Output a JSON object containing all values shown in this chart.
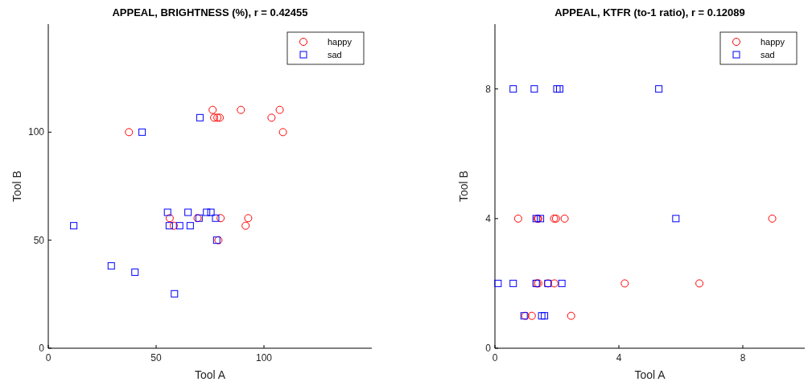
{
  "chart_data": [
    {
      "type": "scatter",
      "title": "APPEAL, BRIGHTNESS (%), r = 0.42455",
      "xlabel": "Tool A",
      "ylabel": "Tool B",
      "xlim": [
        0,
        150
      ],
      "ylim": [
        0,
        150
      ],
      "xticks": [
        0,
        50,
        100
      ],
      "yticks": [
        0,
        50,
        100
      ],
      "grid": false,
      "legend": "top right",
      "series": [
        {
          "name": "happy",
          "color": "#ff0000",
          "marker": "circle",
          "x": [
            37.4,
            76.2,
            76.9,
            78.4,
            79.5,
            89.3,
            103.5,
            107.3,
            108.8,
            56.3,
            58.2,
            69.2,
            79.9,
            92.7,
            91.5,
            78.9
          ],
          "values": [
            100,
            110.3,
            106.7,
            106.7,
            106.7,
            110.3,
            106.7,
            110.3,
            100,
            60.2,
            56.7,
            60.2,
            60.2,
            60.2,
            56.7,
            50
          ]
        },
        {
          "name": "sad",
          "color": "#0000ff",
          "marker": "square",
          "x": [
            70.3,
            43.5,
            11.8,
            29.2,
            40.2,
            58.5,
            55.3,
            56.1,
            60.9,
            64.8,
            65.8,
            69.9,
            73.4,
            75.4,
            77.6,
            78.1
          ],
          "values": [
            106.7,
            100,
            56.7,
            38.1,
            35.2,
            25.2,
            62.9,
            56.7,
            56.7,
            62.9,
            56.7,
            60.2,
            62.9,
            62.9,
            60.2,
            50
          ]
        }
      ]
    },
    {
      "type": "scatter",
      "title": "APPEAL, KTFR (to-1 ratio), r = 0.12089",
      "xlabel": "Tool A",
      "ylabel": "Tool B",
      "xlim": [
        0,
        10
      ],
      "ylim": [
        0,
        10
      ],
      "xticks": [
        0,
        4,
        8
      ],
      "yticks": [
        0,
        4,
        8
      ],
      "grid": false,
      "legend": "top right",
      "series": [
        {
          "name": "happy",
          "color": "#ff0000",
          "marker": "circle",
          "x": [
            0.75,
            1.37,
            1.4,
            1.91,
            1.97,
            2.25,
            8.95,
            1.35,
            1.4,
            1.71,
            1.92,
            4.19,
            6.6,
            0.98,
            1.19,
            2.46
          ],
          "values": [
            4,
            4,
            4,
            4,
            4,
            4,
            4,
            2,
            2,
            2,
            2,
            2,
            2,
            1,
            1,
            1
          ]
        },
        {
          "name": "sad",
          "color": "#0000ff",
          "marker": "square",
          "x": [
            0.59,
            1.27,
            2.0,
            2.09,
            5.29,
            1.33,
            1.47,
            5.84,
            0.1,
            0.59,
            1.33,
            1.71,
            2.16,
            0.94,
            1.51,
            1.6
          ],
          "values": [
            8,
            8,
            8,
            8,
            8,
            4,
            4,
            4,
            2,
            2,
            2,
            2,
            2,
            1,
            1,
            1
          ]
        }
      ]
    }
  ]
}
